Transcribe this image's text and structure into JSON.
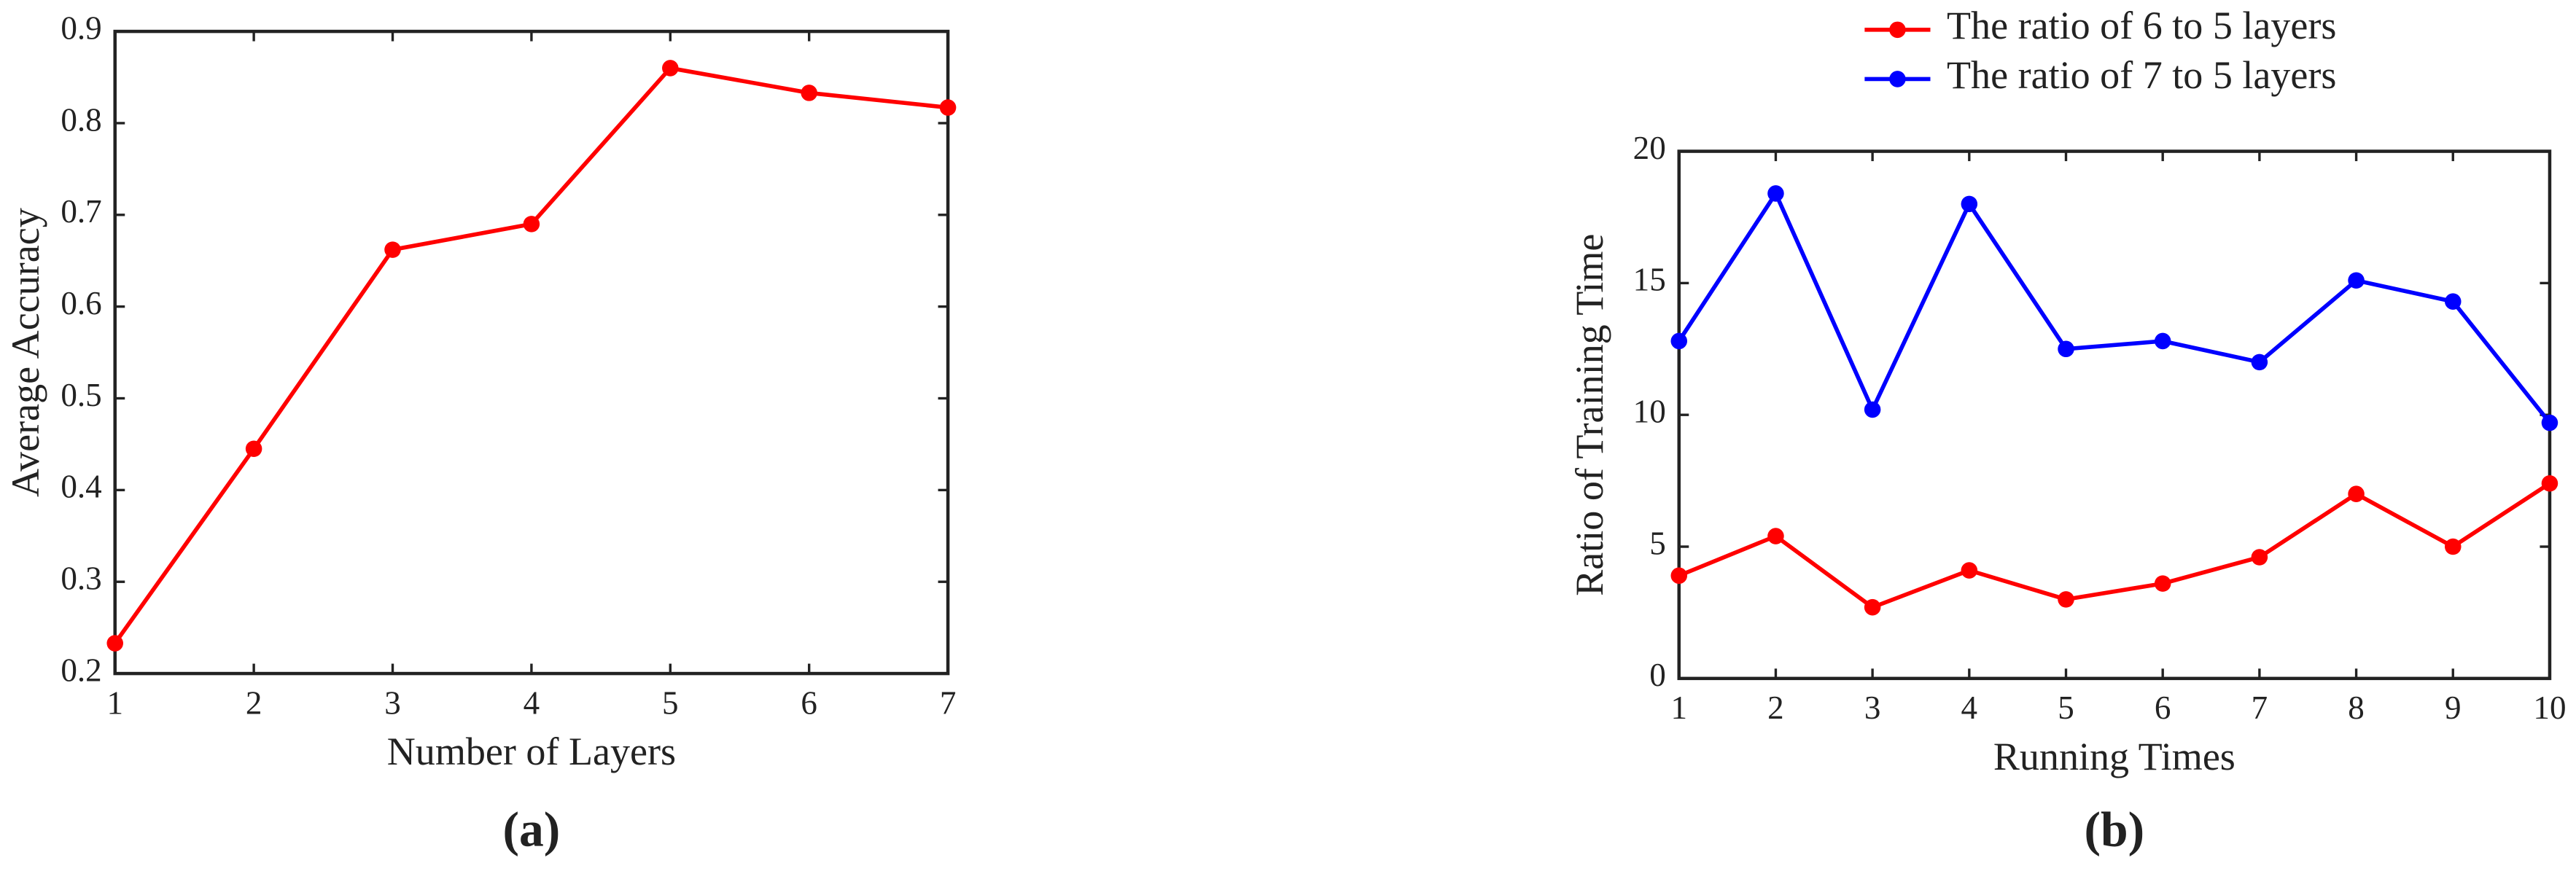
{
  "chart_data": [
    {
      "type": "line",
      "caption": "(a)",
      "xlabel": "Number of Layers",
      "ylabel": "Average Accuracy",
      "x": [
        1,
        2,
        3,
        4,
        5,
        6,
        7
      ],
      "series": [
        {
          "color": "#ff0000",
          "values": [
            0.233,
            0.445,
            0.662,
            0.69,
            0.86,
            0.833,
            0.817
          ]
        }
      ],
      "xlim": [
        1,
        7
      ],
      "xticks": [
        1,
        2,
        3,
        4,
        5,
        6,
        7
      ],
      "ylim": [
        0.2,
        0.9
      ],
      "yticks": [
        0.2,
        0.3,
        0.4,
        0.5,
        0.6,
        0.7,
        0.8,
        0.9
      ]
    },
    {
      "type": "line",
      "caption": "(b)",
      "xlabel": "Running Times",
      "ylabel": "Ratio of Training Time",
      "x": [
        1,
        2,
        3,
        4,
        5,
        6,
        7,
        8,
        9,
        10
      ],
      "series": [
        {
          "name": "The ratio of 6 to 5 layers",
          "color": "#ff0000",
          "values": [
            3.9,
            5.4,
            2.7,
            4.1,
            3.0,
            3.6,
            4.6,
            7.0,
            5.0,
            7.4
          ]
        },
        {
          "name": "The ratio of 7 to 5 layers",
          "color": "#0000ff",
          "values": [
            12.8,
            18.4,
            10.2,
            18.0,
            12.5,
            12.8,
            12.0,
            15.1,
            14.3,
            9.7
          ]
        }
      ],
      "xlim": [
        1,
        10
      ],
      "xticks": [
        1,
        2,
        3,
        4,
        5,
        6,
        7,
        8,
        9,
        10
      ],
      "ylim": [
        0,
        20
      ],
      "yticks": [
        0,
        5,
        10,
        15,
        20
      ]
    }
  ]
}
